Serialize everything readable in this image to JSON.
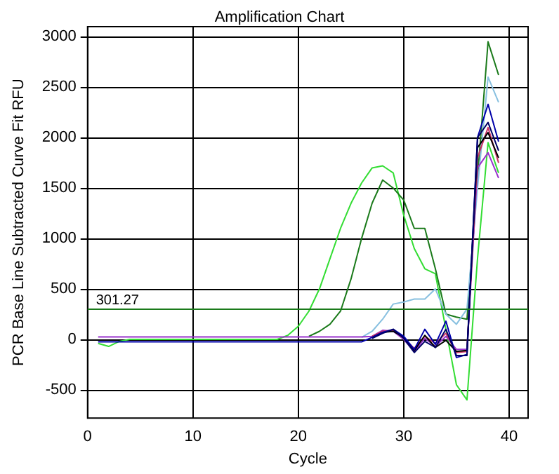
{
  "chart_data": {
    "type": "line",
    "title": "Amplification Chart",
    "xlabel": "Cycle",
    "ylabel": "PCR Base Line Subtracted Curve Fit RFU",
    "x": [
      1,
      2,
      3,
      4,
      5,
      6,
      7,
      8,
      9,
      10,
      11,
      12,
      13,
      14,
      15,
      16,
      17,
      18,
      19,
      20,
      21,
      22,
      23,
      24,
      25,
      26,
      27,
      28,
      29,
      30,
      31,
      32,
      33,
      34,
      35,
      36,
      37,
      38,
      39
    ],
    "series": [
      {
        "color": "#33dd33",
        "values": [
          -40,
          -70,
          -20,
          0,
          0,
          0,
          0,
          0,
          0,
          0,
          0,
          0,
          0,
          0,
          0,
          0,
          0,
          0,
          40,
          130,
          280,
          500,
          800,
          1100,
          1350,
          1550,
          1700,
          1720,
          1650,
          1230,
          900,
          700,
          650,
          100,
          -450,
          -600,
          800,
          1950,
          1650
        ]
      },
      {
        "color": "#1a7a1a",
        "values": [
          null,
          null,
          null,
          null,
          null,
          null,
          null,
          null,
          null,
          null,
          null,
          null,
          null,
          null,
          null,
          null,
          null,
          null,
          null,
          null,
          30,
          80,
          150,
          280,
          600,
          1000,
          1350,
          1580,
          1500,
          1380,
          1100,
          1100,
          700,
          250,
          220,
          200,
          1600,
          2950,
          2620
        ]
      },
      {
        "color": "#88c0e0",
        "values": [
          null,
          null,
          null,
          null,
          null,
          null,
          null,
          null,
          null,
          null,
          null,
          null,
          null,
          null,
          null,
          null,
          null,
          null,
          null,
          null,
          null,
          null,
          null,
          null,
          null,
          20,
          80,
          200,
          350,
          370,
          400,
          400,
          500,
          250,
          150,
          300,
          1500,
          2600,
          2350
        ]
      },
      {
        "color": "#9933cc",
        "values": [
          25,
          25,
          25,
          25,
          25,
          25,
          25,
          25,
          25,
          25,
          25,
          25,
          25,
          25,
          25,
          25,
          25,
          25,
          25,
          25,
          25,
          25,
          25,
          25,
          25,
          25,
          30,
          90,
          80,
          0,
          -120,
          10,
          -70,
          30,
          -100,
          -100,
          1700,
          1850,
          1600
        ]
      },
      {
        "color": "#cc3366",
        "values": [
          null,
          null,
          null,
          null,
          null,
          null,
          null,
          null,
          null,
          null,
          null,
          null,
          null,
          null,
          null,
          null,
          null,
          null,
          null,
          null,
          null,
          null,
          null,
          null,
          null,
          null,
          30,
          80,
          90,
          10,
          -90,
          30,
          -40,
          60,
          -130,
          -120,
          1800,
          2100,
          1750
        ]
      },
      {
        "color": "#000000",
        "values": [
          null,
          null,
          null,
          null,
          null,
          null,
          null,
          null,
          null,
          null,
          null,
          null,
          null,
          null,
          null,
          null,
          null,
          null,
          null,
          null,
          null,
          null,
          null,
          null,
          null,
          null,
          20,
          70,
          80,
          20,
          -110,
          40,
          -80,
          -10,
          -120,
          -110,
          1900,
          2050,
          1800
        ]
      },
      {
        "color": "#0000aa",
        "values": [
          -25,
          -25,
          -25,
          -25,
          -25,
          -25,
          -25,
          -25,
          -25,
          -25,
          -25,
          -25,
          -25,
          -25,
          -25,
          -25,
          -25,
          -25,
          -25,
          -25,
          -25,
          -25,
          -25,
          -25,
          -25,
          -25,
          20,
          70,
          100,
          30,
          -100,
          100,
          -50,
          180,
          -180,
          -150,
          2000,
          2330,
          1960
        ]
      },
      {
        "color": "#000066",
        "values": [
          null,
          null,
          null,
          null,
          null,
          null,
          null,
          null,
          null,
          null,
          null,
          null,
          null,
          null,
          null,
          null,
          null,
          null,
          null,
          null,
          null,
          null,
          null,
          null,
          null,
          null,
          10,
          60,
          100,
          10,
          -130,
          -20,
          -80,
          100,
          -160,
          -160,
          2000,
          2150,
          1870
        ]
      }
    ],
    "xlim": [
      0,
      41.8
    ],
    "xticks": [
      0,
      10,
      20,
      30,
      40
    ],
    "ylim": [
      -780,
      3100
    ],
    "yticks": [
      -500,
      0,
      500,
      1000,
      1500,
      2000,
      2500,
      3000
    ],
    "ref_lines": [
      {
        "axis": "y",
        "value": 301.27,
        "label": "301.27",
        "color": "#1a7a1a"
      }
    ],
    "grid": true,
    "marker": "none"
  }
}
